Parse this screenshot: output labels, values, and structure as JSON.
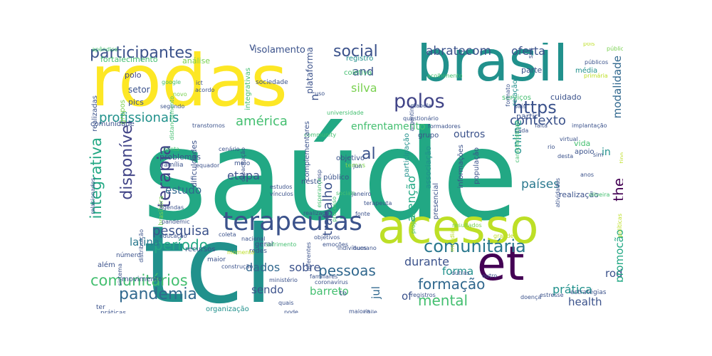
{
  "colors": {
    "deep_purple": "#440154",
    "indigo": "#3b528b",
    "slate_blue": "#414487",
    "steel_blue": "#31688e",
    "teal_blue": "#2a788e",
    "teal": "#21918c",
    "sea_green": "#22a884",
    "green": "#44bf70",
    "light_green": "#7ad151",
    "yellow_green": "#bddf26",
    "yellow": "#fde725",
    "background": "#ffffff"
  },
  "words": [
    {
      "text": "saúde",
      "color": "#22a884"
    },
    {
      "text": "tcl",
      "color": "#21918c"
    },
    {
      "text": "rodas",
      "color": "#fde725"
    },
    {
      "text": "brasil",
      "color": "#21918c"
    },
    {
      "text": "acesso",
      "color": "#bddf26"
    },
    {
      "text": "et",
      "color": "#440154"
    },
    {
      "text": "terapeutas",
      "color": "#3b528b"
    },
    {
      "text": "comunitária",
      "color": "#2a788e"
    },
    {
      "text": "polos",
      "color": "#414487"
    },
    {
      "text": "https",
      "color": "#3b528b"
    },
    {
      "text": "participantes",
      "color": "#3b528b"
    },
    {
      "text": "social",
      "color": "#3b528b"
    },
    {
      "text": "pandemia",
      "color": "#31688e"
    },
    {
      "text": "comunitários",
      "color": "#44bf70"
    },
    {
      "text": "mental",
      "color": "#44bf70"
    },
    {
      "text": "formação",
      "color": "#31688e"
    },
    {
      "text": "pessoas",
      "color": "#31688e"
    },
    {
      "text": "profissionais",
      "color": "#21918c"
    },
    {
      "text": "pesquisa",
      "color": "#3b528b"
    },
    {
      "text": "período",
      "color": "#22a884"
    },
    {
      "text": "integrativa",
      "color": "#22a884"
    },
    {
      "text": "disponível",
      "color": "#414487"
    },
    {
      "text": "terapia",
      "color": "#414487"
    },
    {
      "text": "américa",
      "color": "#44bf70"
    },
    {
      "text": "contexto",
      "color": "#3b528b"
    },
    {
      "text": "the",
      "color": "#440154"
    },
    {
      "text": "modalidade",
      "color": "#31688e"
    },
    {
      "text": "abratecom",
      "color": "#3b528b"
    },
    {
      "text": "oferta",
      "color": "#3b528b"
    },
    {
      "text": "países",
      "color": "#2a788e"
    },
    {
      "text": "enfrentamento",
      "color": "#44bf70"
    },
    {
      "text": "online",
      "color": "#21918c"
    },
    {
      "text": "latina",
      "color": "#2a788e"
    },
    {
      "text": "etapa",
      "color": "#3b528b"
    },
    {
      "text": "estudo",
      "color": "#31688e"
    },
    {
      "text": "trabalho",
      "color": "#3b528b"
    },
    {
      "text": "atenção",
      "color": "#22a884"
    },
    {
      "text": "dados",
      "color": "#31688e"
    },
    {
      "text": "sobre",
      "color": "#3b528b"
    },
    {
      "text": "durante",
      "color": "#3b528b"
    },
    {
      "text": "prática",
      "color": "#21918c"
    },
    {
      "text": "sendo",
      "color": "#3b528b"
    },
    {
      "text": "barreto",
      "color": "#44bf70"
    },
    {
      "text": "jul",
      "color": "#31688e"
    },
    {
      "text": "forma",
      "color": "#21918c"
    },
    {
      "text": "health",
      "color": "#3b528b"
    },
    {
      "text": "roda",
      "color": "#3b528b"
    },
    {
      "text": "promoção",
      "color": "#22a884"
    },
    {
      "text": "and",
      "color": "#3b528b"
    },
    {
      "text": "silva",
      "color": "#7ad151"
    },
    {
      "text": "outros",
      "color": "#3b528b"
    },
    {
      "text": "al",
      "color": "#3b528b"
    },
    {
      "text": "of",
      "color": "#3b528b"
    },
    {
      "text": "in",
      "color": "#21918c"
    },
    {
      "text": "v",
      "color": "#3b528b"
    },
    {
      "text": "n",
      "color": "#3b528b"
    },
    {
      "text": "isolamento",
      "color": "#3b528b"
    },
    {
      "text": "fortalecimento",
      "color": "#44bf70"
    },
    {
      "text": "análise",
      "color": "#7ad151"
    },
    {
      "text": "plataforma",
      "color": "#3b528b"
    },
    {
      "text": "registro",
      "color": "#21918c"
    },
    {
      "text": "coletiva",
      "color": "#44bf70"
    },
    {
      "text": "integrativas",
      "color": "#44bf70"
    },
    {
      "text": "setor",
      "color": "#3b528b"
    },
    {
      "text": "pics",
      "color": "#3b528b"
    },
    {
      "text": "polo",
      "color": "#414487"
    },
    {
      "text": "grupos",
      "color": "#7ad151"
    },
    {
      "text": "realizadas",
      "color": "#3b528b"
    },
    {
      "text": "comunidade",
      "color": "#3b528b"
    },
    {
      "text": "google",
      "color": "#44bf70"
    },
    {
      "text": "novo",
      "color": "#7ad151"
    },
    {
      "text": "segundo",
      "color": "#3b528b"
    },
    {
      "text": "ict",
      "color": "#3b528b"
    },
    {
      "text": "acordo",
      "color": "#3b528b"
    },
    {
      "text": "sociedade",
      "color": "#3b528b"
    },
    {
      "text": "uso",
      "color": "#3b528b"
    },
    {
      "text": "universidade",
      "color": "#44bf70"
    },
    {
      "text": "autocuidado",
      "color": "#3b528b"
    },
    {
      "text": "abr",
      "color": "#3b528b"
    },
    {
      "text": "parte",
      "color": "#3b528b"
    },
    {
      "text": "relação",
      "color": "#21918c"
    },
    {
      "text": "média",
      "color": "#21918c"
    },
    {
      "text": "públicos",
      "color": "#3b528b"
    },
    {
      "text": "pública",
      "color": "#7ad151"
    },
    {
      "text": "sus",
      "color": "#3b528b"
    },
    {
      "text": "pois",
      "color": "#bddf26"
    },
    {
      "text": "primária",
      "color": "#bddf26"
    },
    {
      "text": "acolhimento",
      "color": "#44bf70"
    },
    {
      "text": "serviços",
      "color": "#44bf70"
    },
    {
      "text": "cuidado",
      "color": "#3b528b"
    },
    {
      "text": "partir",
      "color": "#3b528b"
    },
    {
      "text": "grupo",
      "color": "#3b528b"
    },
    {
      "text": "formadores",
      "color": "#3b528b"
    },
    {
      "text": "implantação",
      "color": "#3b528b"
    },
    {
      "text": "vida",
      "color": "#44bf70"
    },
    {
      "text": "apoio",
      "color": "#3b528b"
    },
    {
      "text": "país",
      "color": "#3b528b"
    },
    {
      "text": "formato",
      "color": "#3b528b"
    },
    {
      "text": "cada",
      "color": "#3b528b"
    },
    {
      "text": "falta",
      "color": "#3b528b"
    },
    {
      "text": "características",
      "color": "#44bf70"
    },
    {
      "text": "argentina",
      "color": "#3b528b"
    },
    {
      "text": "questionário",
      "color": "#3b528b"
    },
    {
      "text": "tabela",
      "color": "#3b528b"
    },
    {
      "text": "community",
      "color": "#44bf70"
    },
    {
      "text": "transtornos",
      "color": "#3b528b"
    },
    {
      "text": "distanciamento",
      "color": "#44bf70"
    },
    {
      "text": "apêndice",
      "color": "#44bf70"
    },
    {
      "text": "problemas",
      "color": "#3b528b"
    },
    {
      "text": "família",
      "color": "#3b528b"
    },
    {
      "text": "dificuldades",
      "color": "#3b528b"
    },
    {
      "text": "equador",
      "color": "#3b528b"
    },
    {
      "text": "ponta",
      "color": "#44bf70"
    },
    {
      "text": "cenário",
      "color": "#3b528b"
    },
    {
      "text": "meio",
      "color": "#3b528b"
    },
    {
      "text": "público",
      "color": "#3b528b"
    },
    {
      "text": "objetivo",
      "color": "#3b528b"
    },
    {
      "text": "temas",
      "color": "#7ad151"
    },
    {
      "text": "sociais",
      "color": "#44bf70"
    },
    {
      "text": "processo",
      "color": "#44bf70"
    },
    {
      "text": "neste",
      "color": "#3b528b"
    },
    {
      "text": "capacitação",
      "color": "#3b528b"
    },
    {
      "text": "brasileira",
      "color": "#7ad151"
    },
    {
      "text": "agendas",
      "color": "#3b528b"
    },
    {
      "text": "pandemic",
      "color": "#3b528b"
    },
    {
      "text": "relacionados",
      "color": "#3b528b"
    },
    {
      "text": "estudos",
      "color": "#3b528b"
    },
    {
      "text": "vínculos",
      "color": "#3b528b"
    },
    {
      "text": "janeiro",
      "color": "#3b528b"
    },
    {
      "text": "jun",
      "color": "#3b528b"
    },
    {
      "text": "esp",
      "color": "#3b528b"
    },
    {
      "text": "esperança",
      "color": "#44bf70"
    },
    {
      "text": "complementares",
      "color": "#3b528b"
    },
    {
      "text": "informações",
      "color": "#3b528b"
    },
    {
      "text": "população",
      "color": "#3b528b"
    },
    {
      "text": "presencial",
      "color": "#3b528b"
    },
    {
      "text": "associação",
      "color": "#21918c"
    },
    {
      "text": "participação",
      "color": "#21918c"
    },
    {
      "text": "virtual",
      "color": "#3b528b"
    },
    {
      "text": "rio",
      "color": "#3b528b"
    },
    {
      "text": "desta",
      "color": "#3b528b"
    },
    {
      "text": "sim",
      "color": "#3b528b"
    },
    {
      "text": "anos",
      "color": "#3b528b"
    },
    {
      "text": "tipo",
      "color": "#bddf26"
    },
    {
      "text": "realização",
      "color": "#3b528b"
    },
    {
      "text": "atividades",
      "color": "#3b528b"
    },
    {
      "text": "políticas",
      "color": "#bddf26"
    },
    {
      "text": "oliveira",
      "color": "#44bf70"
    },
    {
      "text": "terapeuta",
      "color": "#3b528b"
    },
    {
      "text": "realizado",
      "color": "#3b528b"
    },
    {
      "text": "fonte",
      "color": "#3b528b"
    },
    {
      "text": "projeto",
      "color": "#44bf70"
    },
    {
      "text": "resultados",
      "color": "#7ad151"
    },
    {
      "text": "grande",
      "color": "#bddf26"
    },
    {
      "text": "mundial",
      "color": "#bddf26"
    },
    {
      "text": "educação",
      "color": "#3b528b"
    },
    {
      "text": "coleta",
      "color": "#3b528b"
    },
    {
      "text": "distribuição",
      "color": "#3b528b"
    },
    {
      "text": "nacional",
      "color": "#3b528b"
    },
    {
      "text": "objetivos",
      "color": "#3b528b"
    },
    {
      "text": "emoções",
      "color": "#3b528b"
    },
    {
      "text": "diferentes",
      "color": "#3b528b"
    },
    {
      "text": "redes",
      "color": "#3b528b"
    },
    {
      "text": "geral",
      "color": "#3b528b"
    },
    {
      "text": "sofrimento",
      "color": "#44bf70"
    },
    {
      "text": "indivíduos",
      "color": "#3b528b"
    },
    {
      "text": "humano",
      "color": "#3b528b"
    },
    {
      "text": "recursos",
      "color": "#3b528b"
    },
    {
      "text": "maior",
      "color": "#3b528b"
    },
    {
      "text": "momento",
      "color": "#bddf26"
    },
    {
      "text": "sistema",
      "color": "#3b528b"
    },
    {
      "text": "número",
      "color": "#3b528b"
    },
    {
      "text": "além",
      "color": "#3b528b"
    },
    {
      "text": "movimento",
      "color": "#3b528b"
    },
    {
      "text": "construção",
      "color": "#3b528b"
    },
    {
      "text": "ministério",
      "color": "#3b528b"
    },
    {
      "text": "familiares",
      "color": "#3b528b"
    },
    {
      "text": "coronavírus",
      "color": "#3b528b"
    },
    {
      "text": "to",
      "color": "#3b528b"
    },
    {
      "text": "registros",
      "color": "#3b528b"
    },
    {
      "text": "outras",
      "color": "#3b528b"
    },
    {
      "text": "outro",
      "color": "#3b528b"
    },
    {
      "text": "doença",
      "color": "#3b528b"
    },
    {
      "text": "estresse",
      "color": "#3b528b"
    },
    {
      "text": "estratégias",
      "color": "#3b528b"
    },
    {
      "text": "ter",
      "color": "#3b528b"
    },
    {
      "text": "práticas",
      "color": "#3b528b"
    },
    {
      "text": "organização",
      "color": "#21918c"
    },
    {
      "text": "quais",
      "color": "#3b528b"
    },
    {
      "text": "pode",
      "color": "#3b528b"
    },
    {
      "text": "chile",
      "color": "#3b528b"
    },
    {
      "text": "maioria",
      "color": "#3b528b"
    }
  ]
}
